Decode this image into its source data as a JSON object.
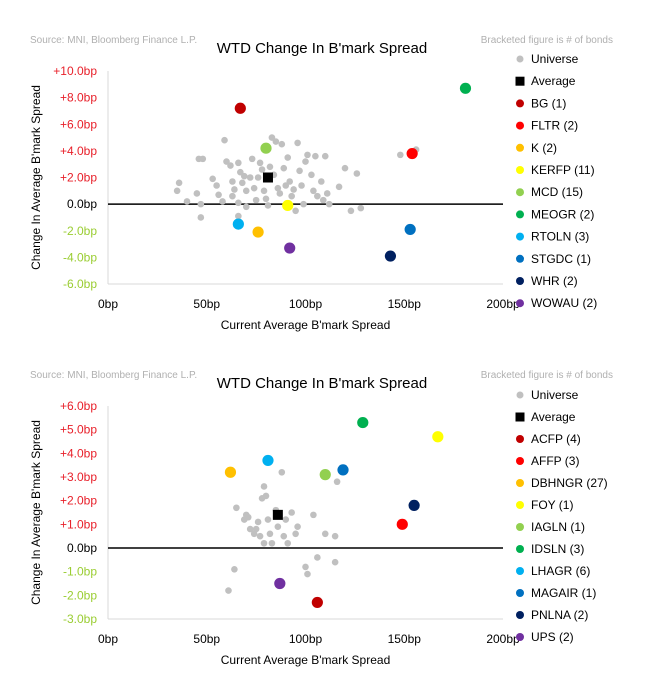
{
  "chart_data": [
    {
      "type": "scatter",
      "source": "Source: MNI, Bloomberg Finance L.P.",
      "note": "Bracketed figure is # of bonds",
      "title": "WTD Change In B'mark Spread",
      "xlabel": "Current Average B'mark Spread",
      "ylabel": "Change In Average B'mark Spread",
      "xlim": [
        0,
        200
      ],
      "ylim": [
        -6,
        10
      ],
      "x_ticks": [
        "0bp",
        "50bp",
        "100bp",
        "150bp",
        "200bp"
      ],
      "y_ticks": [
        "-6.0bp",
        "-4.0bp",
        "-2.0bp",
        "0.0bp",
        "+2.0bp",
        "+4.0bp",
        "+6.0bp",
        "+8.0bp",
        "+10.0bp"
      ],
      "y_tick_colors": [
        "#9acd32",
        "#9acd32",
        "#9acd32",
        "#000000",
        "#e8202a",
        "#e8202a",
        "#e8202a",
        "#e8202a",
        "#e8202a"
      ],
      "universe": {
        "name": "Universe",
        "color": "#c0c0c0",
        "points": [
          [
            36,
            1.6
          ],
          [
            35,
            1.0
          ],
          [
            40,
            0.2
          ],
          [
            46,
            3.4
          ],
          [
            48,
            3.4
          ],
          [
            45,
            0.8
          ],
          [
            47,
            0
          ],
          [
            47,
            -1
          ],
          [
            53,
            1.9
          ],
          [
            55,
            1.4
          ],
          [
            56,
            0.7
          ],
          [
            59,
            4.8
          ],
          [
            60,
            3.2
          ],
          [
            62,
            2.9
          ],
          [
            63,
            1.7
          ],
          [
            64,
            1.1
          ],
          [
            63,
            0.6
          ],
          [
            66,
            3.1
          ],
          [
            67,
            2.4
          ],
          [
            66,
            0.1
          ],
          [
            66,
            -0.9
          ],
          [
            68,
            1.6
          ],
          [
            69,
            2.1
          ],
          [
            70,
            1.0
          ],
          [
            70,
            -0.2
          ],
          [
            72,
            2.0
          ],
          [
            73,
            3.4
          ],
          [
            74,
            1.2
          ],
          [
            75,
            0.3
          ],
          [
            77,
            3.1
          ],
          [
            78,
            2.6
          ],
          [
            79,
            1.0
          ],
          [
            80,
            0.4
          ],
          [
            81,
            -0.1
          ],
          [
            83,
            5.0
          ],
          [
            85,
            4.7
          ],
          [
            84,
            2.2
          ],
          [
            86,
            1.2
          ],
          [
            87,
            0.8
          ],
          [
            88,
            4.5
          ],
          [
            89,
            2.7
          ],
          [
            90,
            1.4
          ],
          [
            91,
            3.5
          ],
          [
            92,
            1.7
          ],
          [
            93,
            0.6
          ],
          [
            94,
            1.1
          ],
          [
            96,
            4.6
          ],
          [
            97,
            2.5
          ],
          [
            98,
            1.4
          ],
          [
            99,
            0
          ],
          [
            100,
            3.2
          ],
          [
            101,
            3.7
          ],
          [
            103,
            2.2
          ],
          [
            104,
            1.0
          ],
          [
            105,
            3.6
          ],
          [
            106,
            0.6
          ],
          [
            108,
            1.7
          ],
          [
            109,
            0.3
          ],
          [
            110,
            3.6
          ],
          [
            111,
            0.8
          ],
          [
            112,
            0
          ],
          [
            117,
            1.3
          ],
          [
            120,
            2.7
          ],
          [
            123,
            -0.5
          ],
          [
            126,
            2.3
          ],
          [
            128,
            -0.3
          ],
          [
            148,
            3.7
          ],
          [
            156,
            4.1
          ],
          [
            58,
            0.2
          ],
          [
            76,
            2.0
          ],
          [
            82,
            2.8
          ],
          [
            95,
            -0.5
          ]
        ]
      },
      "series": [
        {
          "name": "Average",
          "color": "#000000",
          "shape": "square",
          "x": 81,
          "y": 2.0
        },
        {
          "name": "BG (1)",
          "color": "#c00000",
          "shape": "circle",
          "x": 67,
          "y": 7.2
        },
        {
          "name": "FLTR (2)",
          "color": "#ff0000",
          "shape": "circle",
          "x": 154,
          "y": 3.8
        },
        {
          "name": "K (2)",
          "color": "#ffc000",
          "shape": "circle",
          "x": 76,
          "y": -2.1
        },
        {
          "name": "KERFP (11)",
          "color": "#ffff00",
          "shape": "circle",
          "x": 91,
          "y": -0.1
        },
        {
          "name": "MCD (15)",
          "color": "#92d050",
          "shape": "circle",
          "x": 80,
          "y": 4.2
        },
        {
          "name": "MEOGR (2)",
          "color": "#00b050",
          "shape": "circle",
          "x": 181,
          "y": 8.7
        },
        {
          "name": "RTOLN (3)",
          "color": "#00b0f0",
          "shape": "circle",
          "x": 66,
          "y": -1.5
        },
        {
          "name": "STGDC (1)",
          "color": "#0070c0",
          "shape": "circle",
          "x": 153,
          "y": -1.9
        },
        {
          "name": "WHR (2)",
          "color": "#002060",
          "shape": "circle",
          "x": 143,
          "y": -3.9
        },
        {
          "name": "WOWAU (2)",
          "color": "#7030a0",
          "shape": "circle",
          "x": 92,
          "y": -3.3
        }
      ]
    },
    {
      "type": "scatter",
      "source": "Source: MNI, Bloomberg Finance L.P.",
      "note": "Bracketed figure is # of bonds",
      "title": "WTD Change In B'mark Spread",
      "xlabel": "Current Average B'mark Spread",
      "ylabel": "Change In Average B'mark Spread",
      "xlim": [
        0,
        200
      ],
      "ylim": [
        -3,
        6
      ],
      "x_ticks": [
        "0bp",
        "50bp",
        "100bp",
        "150bp",
        "200bp"
      ],
      "y_ticks": [
        "-3.0bp",
        "-2.0bp",
        "-1.0bp",
        "0.0bp",
        "+1.0bp",
        "+2.0bp",
        "+3.0bp",
        "+4.0bp",
        "+5.0bp",
        "+6.0bp"
      ],
      "y_tick_colors": [
        "#9acd32",
        "#9acd32",
        "#9acd32",
        "#000000",
        "#e8202a",
        "#e8202a",
        "#e8202a",
        "#e8202a",
        "#e8202a",
        "#e8202a"
      ],
      "universe": {
        "name": "Universe",
        "color": "#c0c0c0",
        "points": [
          [
            61,
            -1.8
          ],
          [
            64,
            -0.9
          ],
          [
            65,
            1.7
          ],
          [
            69,
            1.2
          ],
          [
            70,
            1.4
          ],
          [
            71,
            1.3
          ],
          [
            72,
            0.8
          ],
          [
            74,
            0.6
          ],
          [
            76,
            1.1
          ],
          [
            77,
            0.5
          ],
          [
            78,
            2.1
          ],
          [
            79,
            2.6
          ],
          [
            79,
            0.2
          ],
          [
            80,
            2.2
          ],
          [
            81,
            1.2
          ],
          [
            82,
            0.6
          ],
          [
            83,
            0.2
          ],
          [
            85,
            1.6
          ],
          [
            86,
            0.9
          ],
          [
            88,
            3.2
          ],
          [
            89,
            0.5
          ],
          [
            90,
            1.2
          ],
          [
            91,
            0.2
          ],
          [
            93,
            1.5
          ],
          [
            95,
            0.6
          ],
          [
            96,
            0.9
          ],
          [
            100,
            -0.8
          ],
          [
            101,
            -1.1
          ],
          [
            104,
            1.4
          ],
          [
            106,
            -0.4
          ],
          [
            110,
            0.6
          ],
          [
            115,
            -0.6
          ],
          [
            116,
            2.8
          ],
          [
            115,
            0.5
          ],
          [
            75,
            0.8
          ]
        ]
      },
      "series": [
        {
          "name": "Average",
          "color": "#000000",
          "shape": "square",
          "x": 86,
          "y": 1.4
        },
        {
          "name": "ACFP (4)",
          "color": "#c00000",
          "shape": "circle",
          "x": 106,
          "y": -2.3
        },
        {
          "name": "AFFP (3)",
          "color": "#ff0000",
          "shape": "circle",
          "x": 149,
          "y": 1.0
        },
        {
          "name": "DBHNGR (27)",
          "color": "#ffc000",
          "shape": "circle",
          "x": 62,
          "y": 3.2
        },
        {
          "name": "FOY (1)",
          "color": "#ffff00",
          "shape": "circle",
          "x": 167,
          "y": 4.7
        },
        {
          "name": "IAGLN (1)",
          "color": "#92d050",
          "shape": "circle",
          "x": 110,
          "y": 3.1
        },
        {
          "name": "IDSLN (3)",
          "color": "#00b050",
          "shape": "circle",
          "x": 129,
          "y": 5.3
        },
        {
          "name": "LHAGR (6)",
          "color": "#00b0f0",
          "shape": "circle",
          "x": 81,
          "y": 3.7
        },
        {
          "name": "MAGAIR (1)",
          "color": "#0070c0",
          "shape": "circle",
          "x": 119,
          "y": 3.3
        },
        {
          "name": "PNLNA (2)",
          "color": "#002060",
          "shape": "circle",
          "x": 155,
          "y": 1.8
        },
        {
          "name": "UPS (2)",
          "color": "#7030a0",
          "shape": "circle",
          "x": 87,
          "y": -1.5
        }
      ]
    }
  ]
}
